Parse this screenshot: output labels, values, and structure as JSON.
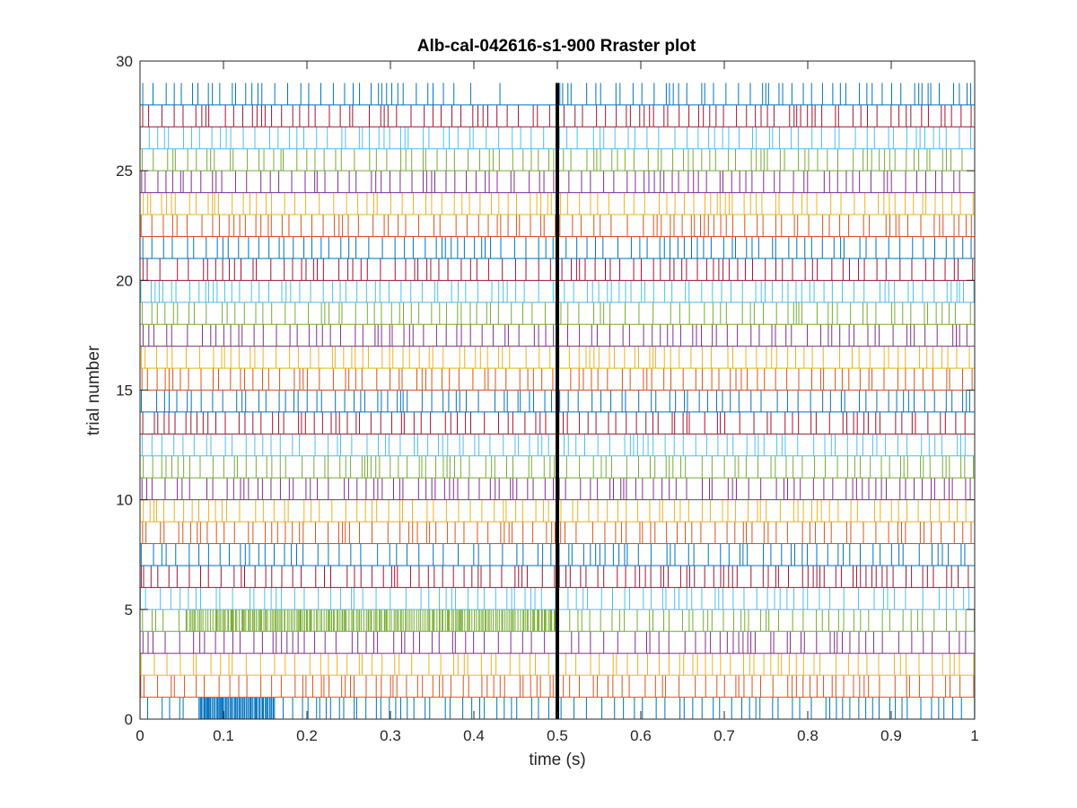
{
  "chart_data": {
    "type": "raster",
    "title": "Alb-cal-042616-s1-900 Rraster plot",
    "xlabel": "time (s)",
    "ylabel": "trial number",
    "xlim": [
      0,
      1
    ],
    "ylim": [
      0,
      30
    ],
    "x_ticks": [
      "0",
      "0.1",
      "0.2",
      "0.3",
      "0.4",
      "0.5",
      "0.6",
      "0.7",
      "0.8",
      "0.9",
      "1"
    ],
    "y_ticks": [
      "0",
      "5",
      "10",
      "15",
      "20",
      "25",
      "30"
    ],
    "n_trials": 29,
    "trial_colors": [
      "#0072BD",
      "#D95319",
      "#EDB120",
      "#7E2F8E",
      "#77AC30",
      "#4DBEEE",
      "#A2142F"
    ],
    "event_marker": {
      "time": 0.5,
      "color": "#000000"
    },
    "notes": "Each trial row contains many spike ticks; dense bursts at 0.06-0.16 s in trial 1 and 0.05-0.50 s in trial 5.",
    "grid": false,
    "legend": "none"
  }
}
